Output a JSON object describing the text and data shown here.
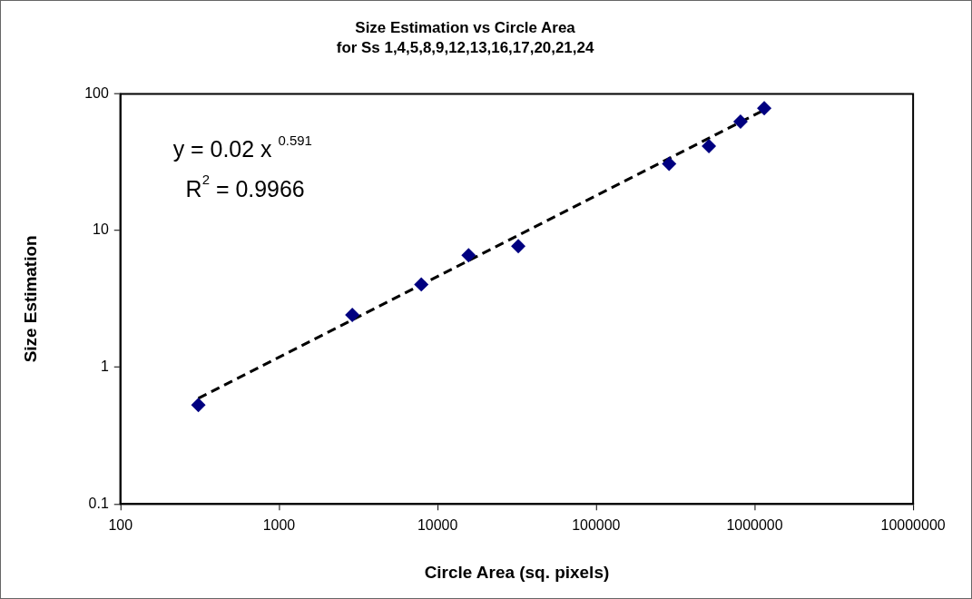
{
  "chart_data": {
    "type": "scatter",
    "title": "Size Estimation vs Circle Area",
    "subtitle": "for Ss 1,4,5,8,9,12,13,16,17,20,21,24",
    "xlabel": "Circle Area (sq. pixels)",
    "ylabel": "Size Estimation",
    "log": "xy",
    "xlim": [
      100,
      10000000
    ],
    "xticks": [
      100,
      1000,
      10000,
      100000,
      1000000,
      10000000
    ],
    "ylim": [
      0.1,
      100
    ],
    "yticks": [
      0.1,
      1,
      10,
      100
    ],
    "grid": false,
    "legend": false,
    "annotations": [
      "y = 0.02 x $^{0.591}$",
      "R$^{2}$ = 0.9966"
    ],
    "series": [
      {
        "type": "scatter",
        "marker": "diamond",
        "color": "#000080",
        "x": [
          310,
          2900,
          7900,
          15700,
          32300,
          289000,
          515000,
          815000,
          1150000
        ],
        "values": [
          0.53,
          2.42,
          4.04,
          6.6,
          7.7,
          30.8,
          41.5,
          62.7,
          78.5
        ]
      },
      {
        "type": "line",
        "marker": "none",
        "line_style": "dashed",
        "color": "#000000",
        "x": [
          310,
          1150000
        ],
        "values": [
          0.593,
          76.3
        ]
      }
    ]
  }
}
